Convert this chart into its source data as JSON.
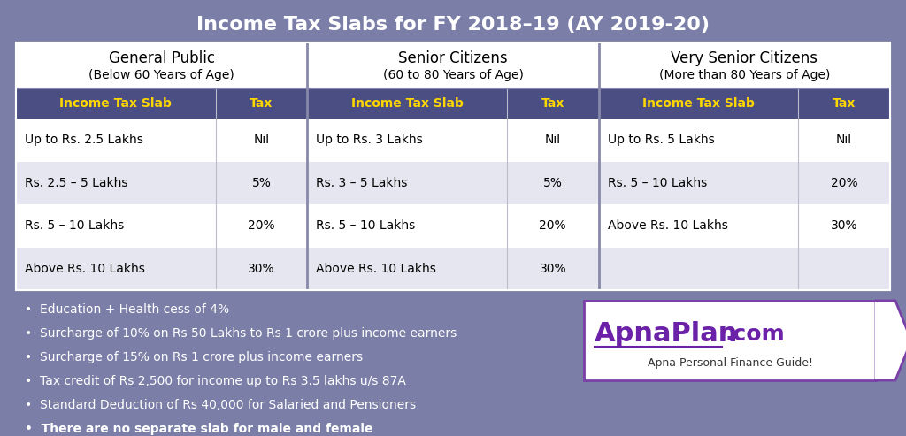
{
  "title": "Income Tax Slabs for FY 2018–19 (AY 2019-20)",
  "bg_color": "#7B7FA8",
  "table_bg_white": "#FFFFFF",
  "header_bg": "#4A4E82",
  "header_yellow": "#FFD700",
  "col_headers": [
    "Income Tax Slab",
    "Tax"
  ],
  "sections": [
    {
      "title": "General Public",
      "subtitle": "(Below 60 Years of Age)",
      "rows": [
        [
          "Up to Rs. 2.5 Lakhs",
          "Nil"
        ],
        [
          "Rs. 2.5 – 5 Lakhs",
          "5%"
        ],
        [
          "Rs. 5 – 10 Lakhs",
          "20%"
        ],
        [
          "Above Rs. 10 Lakhs",
          "30%"
        ]
      ]
    },
    {
      "title": "Senior Citizens",
      "subtitle": "(60 to 80 Years of Age)",
      "rows": [
        [
          "Up to Rs. 3 Lakhs",
          "Nil"
        ],
        [
          "Rs. 3 – 5 Lakhs",
          "5%"
        ],
        [
          "Rs. 5 – 10 Lakhs",
          "20%"
        ],
        [
          "Above Rs. 10 Lakhs",
          "30%"
        ]
      ]
    },
    {
      "title": "Very Senior Citizens",
      "subtitle": "(More than 80 Years of Age)",
      "rows": [
        [
          "Up to Rs. 5 Lakhs",
          "Nil"
        ],
        [
          "Rs. 5 – 10 Lakhs",
          "20%"
        ],
        [
          "Above Rs. 10 Lakhs",
          "30%"
        ],
        [
          "",
          ""
        ]
      ]
    }
  ],
  "bullets": [
    "Education + Health cess of 4%",
    "Surcharge of 10% on Rs 50 Lakhs to Rs 1 crore plus income earners",
    "Surcharge of 15% on Rs 1 crore plus income earners",
    "Tax credit of Rs 2,500 for income up to Rs 3.5 lakhs u/s 87A",
    "Standard Deduction of Rs 40,000 for Salaried and Pensioners",
    "There are no separate slab for male and female"
  ],
  "last_bullet_bold": true,
  "logo_main": "ApnaPlan",
  "logo_com": ".com",
  "logo_subtext": "Apna Personal Finance Guide!",
  "logo_color": "#6B21A8",
  "logo_border_color": "#7B3FA8"
}
